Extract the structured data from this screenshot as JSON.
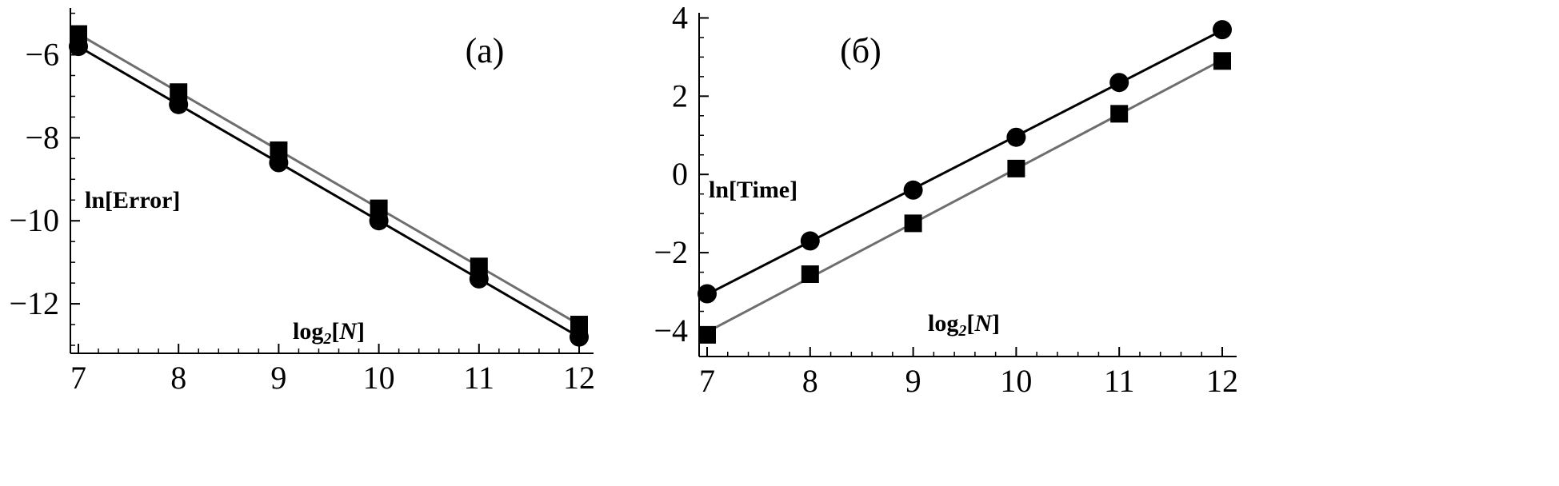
{
  "chart_data": [
    {
      "type": "line",
      "panel_label": "(a)",
      "xlabel_prefix": "log",
      "xlabel_sub": "2",
      "xlabel_open": "[",
      "xlabel_var": "N",
      "xlabel_close": "]",
      "ylabel": "ln[Error]",
      "x": [
        7,
        8,
        9,
        10,
        11,
        12
      ],
      "xlim": [
        7,
        12
      ],
      "ylim": [
        -13,
        -4.95
      ],
      "xticks": [
        7,
        8,
        9,
        10,
        11,
        12
      ],
      "yticks": [
        -6,
        -8,
        -10,
        -12
      ],
      "ytick_labels": [
        "−6",
        "−8",
        "−10",
        "−12"
      ],
      "series": [
        {
          "marker": "square",
          "color": "#6e6e6e",
          "values": [
            -5.5,
            -6.9,
            -8.3,
            -9.7,
            -11.1,
            -12.5
          ]
        },
        {
          "marker": "circle",
          "color": "#000000",
          "values": [
            -5.8,
            -7.2,
            -8.6,
            -10.0,
            -11.4,
            -12.8
          ]
        }
      ],
      "grid": false
    },
    {
      "type": "line",
      "panel_label": "(б)",
      "xlabel_prefix": "log",
      "xlabel_sub": "2",
      "xlabel_open": "[",
      "xlabel_var": "N",
      "xlabel_close": "]",
      "ylabel": "ln[Time]",
      "x": [
        7,
        8,
        9,
        10,
        11,
        12
      ],
      "xlim": [
        7,
        12
      ],
      "ylim": [
        -4.45,
        4.05
      ],
      "xticks": [
        7,
        8,
        9,
        10,
        11,
        12
      ],
      "yticks": [
        4,
        2,
        0,
        -2,
        -4
      ],
      "ytick_labels": [
        "4",
        "2",
        "0",
        "−2",
        "−4"
      ],
      "series": [
        {
          "marker": "circle",
          "color": "#000000",
          "values": [
            -3.05,
            -1.7,
            -0.4,
            0.95,
            2.35,
            3.7
          ]
        },
        {
          "marker": "square",
          "color": "#6e6e6e",
          "values": [
            -4.1,
            -2.55,
            -1.25,
            0.15,
            1.55,
            2.9
          ]
        }
      ],
      "grid": false
    }
  ]
}
